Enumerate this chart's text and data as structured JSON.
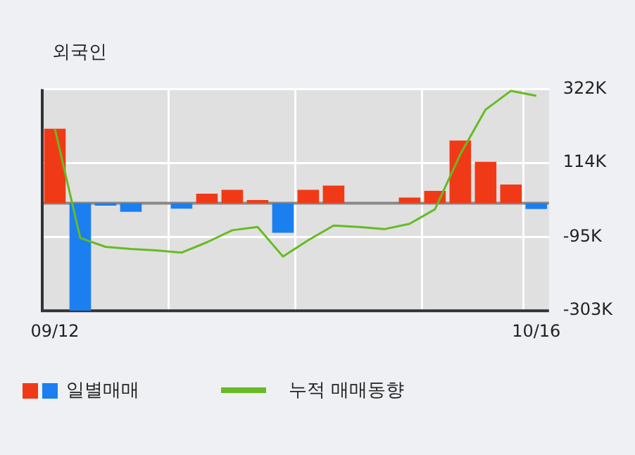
{
  "chart_data": {
    "type": "bar",
    "title": "외국인",
    "categories": [
      "09/12",
      null,
      null,
      null,
      null,
      null,
      null,
      null,
      null,
      null,
      null,
      null,
      null,
      null,
      null,
      null,
      null,
      null,
      null,
      "10/16"
    ],
    "series": [
      {
        "name": "일별매매",
        "colors": [
          "#f03a17",
          "#1b7ff0",
          "#1b7ff0",
          "#1b7ff0",
          "#1b7ff0",
          "#1b7ff0",
          "#f03a17",
          "#f03a17",
          "#f03a17",
          "#1b7ff0",
          "#f03a17",
          "#f03a17",
          "#f03a17",
          "#f03a17",
          "#f03a17",
          "#f03a17",
          "#f03a17",
          "#f03a17",
          "#f03a17",
          "#1b7ff0"
        ],
        "values": [
          210000,
          -303000,
          -7000,
          -24000,
          0,
          -15000,
          27000,
          38000,
          9000,
          -83000,
          38000,
          50000,
          0,
          0,
          16000,
          35000,
          177000,
          117000,
          53000,
          -16000
        ]
      },
      {
        "type": "line",
        "name": "누적 매매동향",
        "color": "#66bb22",
        "values": [
          210000,
          -98000,
          -123000,
          -129000,
          -133000,
          -139000,
          -110000,
          -76000,
          -67000,
          -150000,
          -104000,
          -63000,
          -67000,
          -73000,
          -58000,
          -17000,
          138000,
          264000,
          317000,
          303000
        ]
      }
    ],
    "ylim": [
      -303000,
      322000
    ],
    "yticks": [
      {
        "value": -303000,
        "label": "-303K"
      },
      {
        "value": -95000,
        "label": "-95K"
      },
      {
        "value": 114000,
        "label": "114K"
      },
      {
        "value": 322000,
        "label": "322K"
      }
    ],
    "ref_lines": [
      {
        "axis": "y",
        "value": 0,
        "color": "#888888"
      }
    ],
    "grid": true,
    "legend": "bottom",
    "marker": "none",
    "line_style": "solid"
  }
}
